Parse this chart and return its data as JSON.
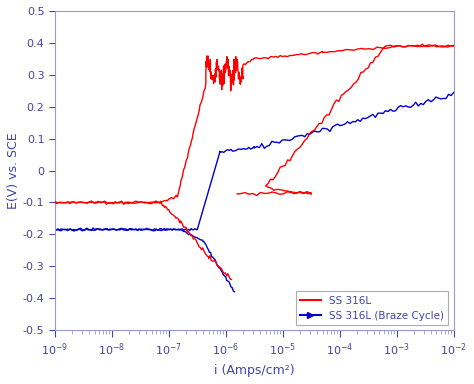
{
  "title": "",
  "xlabel": "i (Amps/cm²)",
  "ylabel": "E(V) vs. SCE",
  "xlim_log": [
    -9,
    -2
  ],
  "ylim": [
    -0.5,
    0.5
  ],
  "yticks": [
    -0.5,
    -0.4,
    -0.3,
    -0.2,
    -0.1,
    0,
    0.1,
    0.2,
    0.3,
    0.4,
    0.5
  ],
  "legend_labels": [
    "SS 316L",
    "SS 316L (Braze Cycle)"
  ],
  "line_colors": [
    "#ff0000",
    "#0000cc"
  ],
  "background_color": "#ffffff",
  "border_color": "#9999cc",
  "font_color": "#4444aa"
}
